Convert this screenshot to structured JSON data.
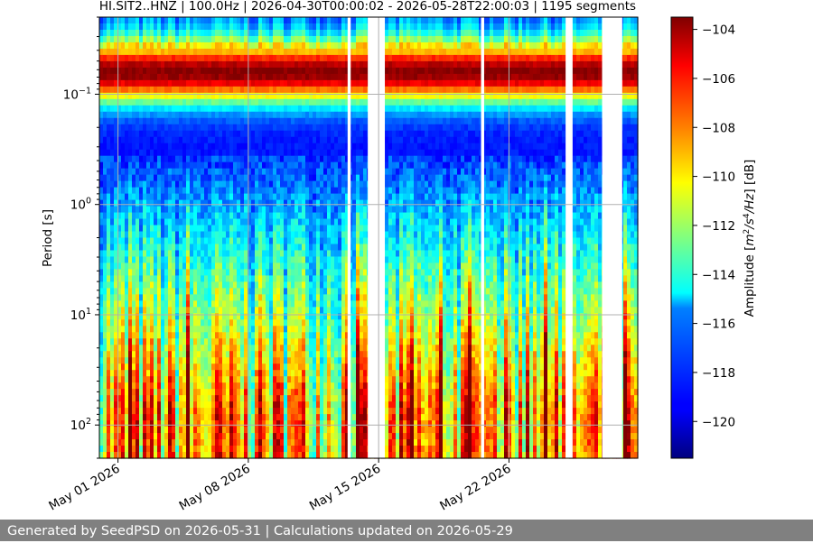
{
  "chart_data": {
    "type": "heatmap",
    "title": "HI.SIT2..HNZ | 100.0Hz | 2026-04-30T00:00:02 - 2026-05-28T22:00:03 | 1195 segments",
    "ylabel": "Period [s]",
    "x_tick_labels": [
      "May 01 2026",
      "May 08 2026",
      "May 15 2026",
      "May 22 2026"
    ],
    "x_ticks": [
      "2026-05-01",
      "2026-05-08",
      "2026-05-15",
      "2026-05-22"
    ],
    "xlim": [
      "2026-04-30",
      "2026-05-28T22:00"
    ],
    "y_scale": "log",
    "y_inverted": true,
    "ylim": [
      0.02,
      200
    ],
    "y_ticks": [
      0.1,
      1,
      10,
      100
    ],
    "y_tick_labels": [
      {
        "base": "10",
        "exp": "−1"
      },
      {
        "base": "10",
        "exp": "0"
      },
      {
        "base": "10",
        "exp": "1"
      },
      {
        "base": "10",
        "exp": "2"
      }
    ],
    "data_gaps": [
      [
        "2026-05-13T08:00",
        "2026-05-13T12:00"
      ],
      [
        "2026-05-14T10:00",
        "2026-05-15T08:00"
      ],
      [
        "2026-05-20T12:00",
        "2026-05-20T16:00"
      ],
      [
        "2026-05-25T01:00",
        "2026-05-25T10:00"
      ],
      [
        "2026-05-27T00:00",
        "2026-05-28T02:00"
      ]
    ],
    "grid": true,
    "colormap": "jet",
    "colorbar": {
      "label": "Amplitude [m²/s⁴/Hz] [dB]",
      "label_parts": {
        "pre": "Amplitude [",
        "m": "m",
        "e1": "2",
        "mid": "/s",
        "e2": "4",
        "post": "/Hz",
        "tail": "] [dB]"
      },
      "range": [
        -121.5,
        -103.5
      ],
      "ticks": [
        -104,
        -106,
        -108,
        -110,
        -112,
        -114,
        -116,
        -118,
        -120
      ]
    }
  },
  "footer": {
    "text": "Generated by SeedPSD on 2026-05-31 | Calculations updated on 2026-05-29",
    "background": "#808080"
  }
}
